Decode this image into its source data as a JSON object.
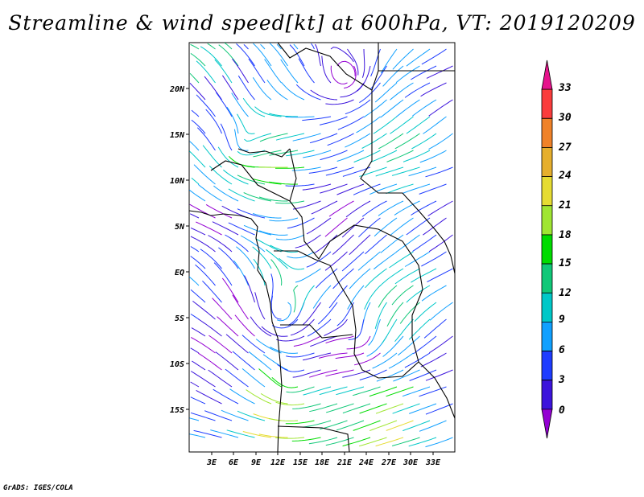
{
  "title": "Streamline & wind speed[kt] at 600hPa, VT: 2019120209",
  "credit": "GrADS: IGES/COLA",
  "map": {
    "lon_ticks": [
      "3E",
      "6E",
      "9E",
      "12E",
      "15E",
      "18E",
      "21E",
      "24E",
      "27E",
      "30E",
      "33E"
    ],
    "lat_ticks": [
      "20N",
      "15N",
      "10N",
      "5N",
      "EQ",
      "5S",
      "10S",
      "15S"
    ]
  },
  "colorbar": {
    "labels": [
      "0",
      "3",
      "6",
      "9",
      "12",
      "15",
      "18",
      "21",
      "24",
      "27",
      "30",
      "33"
    ],
    "colors": [
      "#9400d3",
      "#3c14dc",
      "#1e3cff",
      "#10a0ff",
      "#00c8c8",
      "#10c878",
      "#00dc00",
      "#a0e632",
      "#e6dc32",
      "#e6af2d",
      "#f08228",
      "#fa3c3c",
      "#e6138c"
    ]
  }
}
